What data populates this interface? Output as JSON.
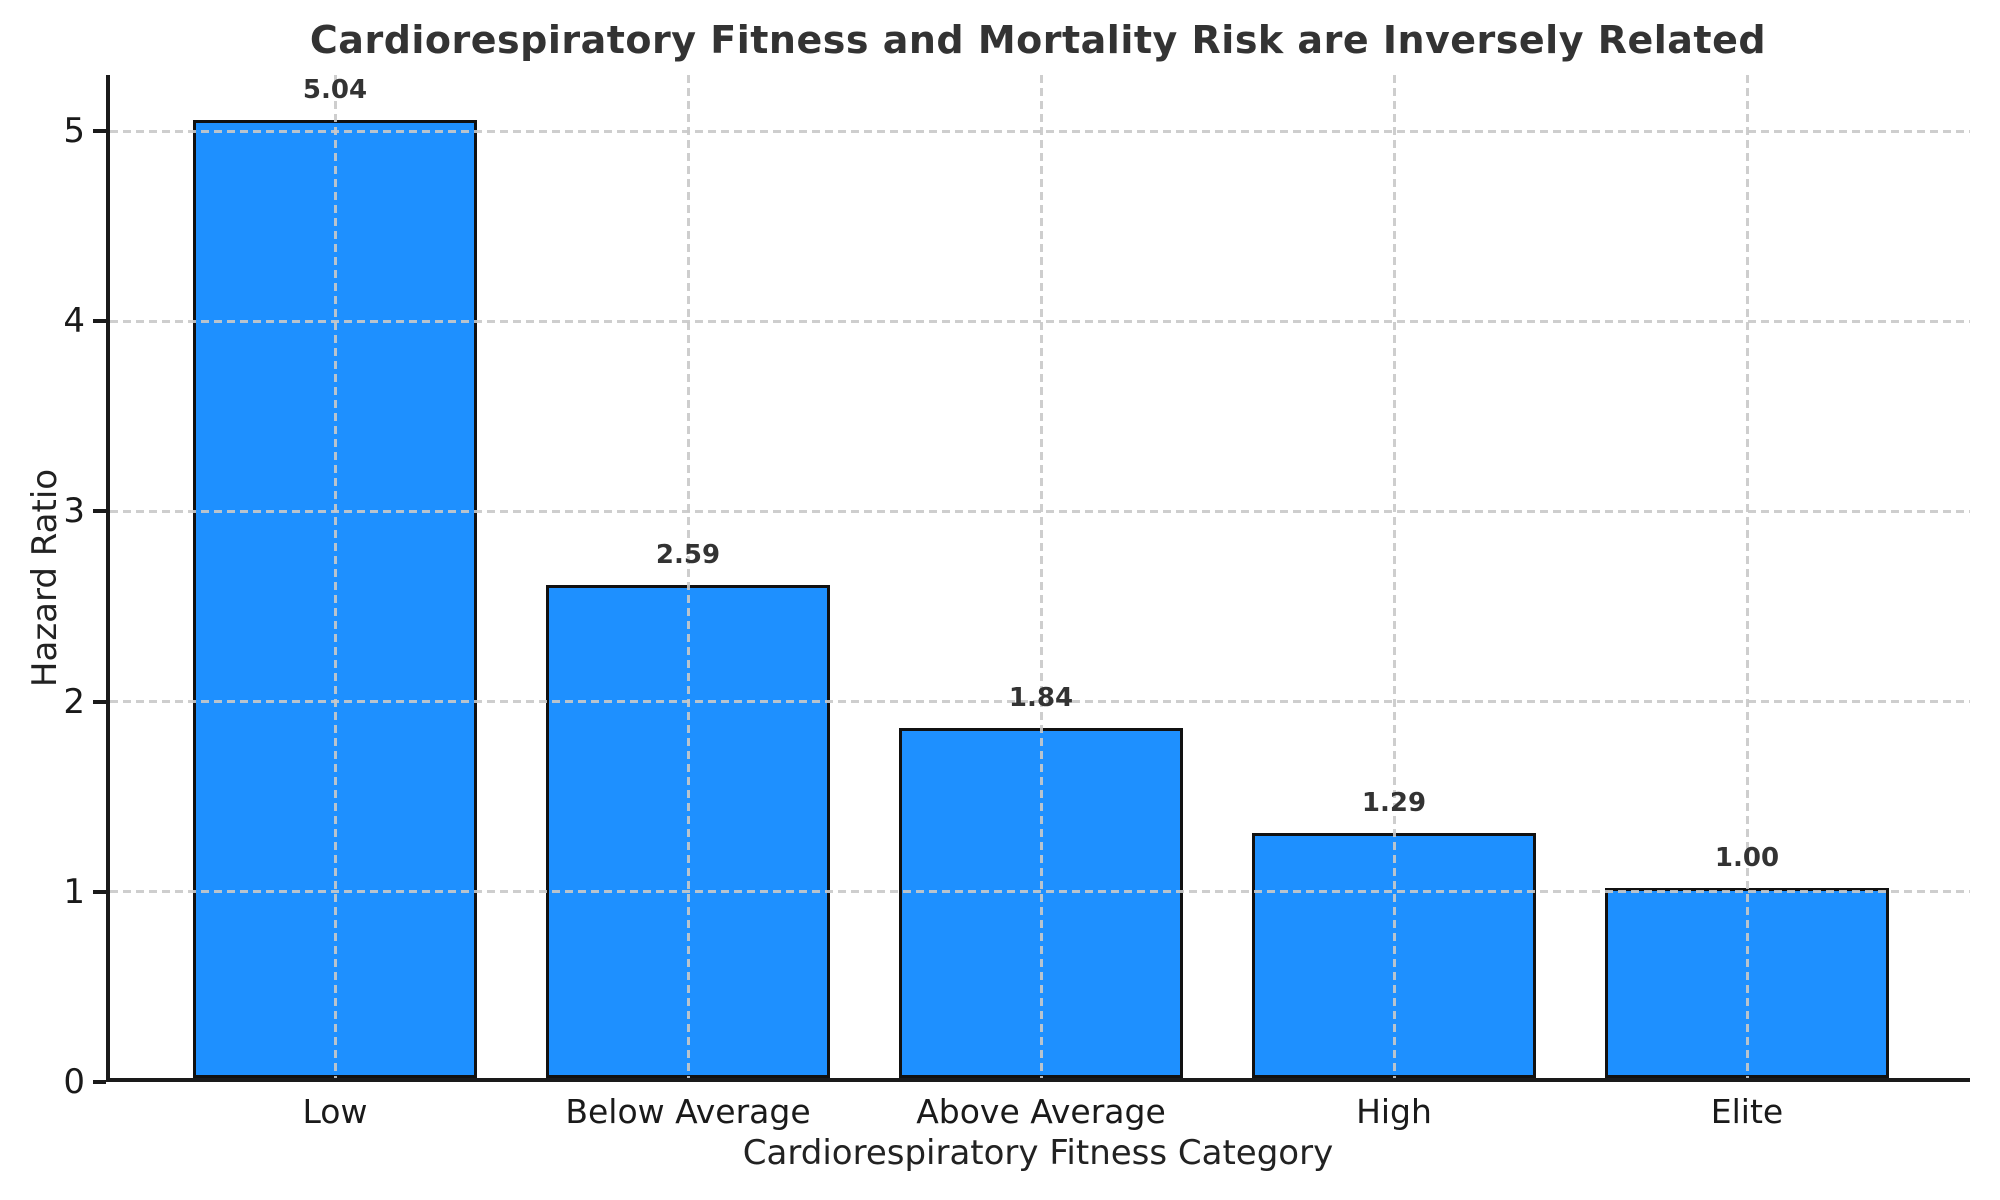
{
  "chart_data": {
    "type": "bar",
    "title": "Cardiorespiratory Fitness and Mortality Risk are Inversely Related",
    "xlabel": "Cardiorespiratory Fitness Category",
    "ylabel": "Hazard Ratio",
    "categories": [
      "Low",
      "Below Average",
      "Above Average",
      "High",
      "Elite"
    ],
    "values": [
      5.04,
      2.59,
      1.84,
      1.29,
      1.0
    ],
    "value_labels": [
      "5.04",
      "2.59",
      "1.84",
      "1.29",
      "1.00"
    ],
    "yticks": [
      0,
      1,
      2,
      3,
      4,
      5
    ],
    "ylim": [
      0,
      5.3
    ],
    "grid": true,
    "grid_style": "dashed",
    "legend": "none",
    "bar_color": "#1E90FF",
    "bar_edge_color": "#111111",
    "grid_color": "#c9c9c9",
    "axis_color": "#1a1a1a",
    "text_color": "#333333"
  }
}
